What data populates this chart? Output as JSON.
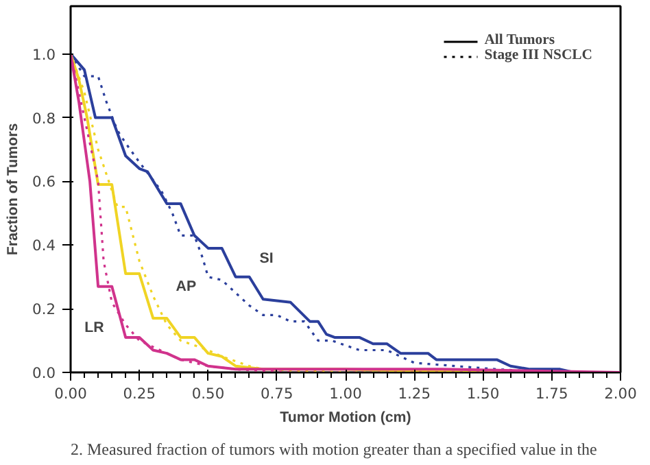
{
  "chart_data": {
    "type": "line",
    "xlabel": "Tumor Motion (cm)",
    "ylabel": "Fraction of Tumors",
    "xlim": [
      0,
      2
    ],
    "ylim": [
      0,
      1.15
    ],
    "xticks": [
      {
        "value": 0,
        "label": "0.00"
      },
      0.25,
      {
        "value": 0.5,
        "label": "0.50"
      },
      0.75,
      {
        "value": 1,
        "label": "1.00"
      },
      1.25,
      {
        "value": 1.5,
        "label": "1.50"
      },
      1.75,
      {
        "value": 2,
        "label": "2.00"
      }
    ],
    "yticks": [
      {
        "value": 0,
        "label": "0.0"
      },
      0.2,
      0.4,
      0.6,
      0.8,
      {
        "value": 1,
        "label": "1.0"
      }
    ],
    "grid": false,
    "marker": "none",
    "series": [
      {
        "color": "#2b3f9c",
        "line_style": "solid",
        "x": [
          0,
          0.05,
          0.09,
          0.15,
          0.2,
          0.25,
          0.28,
          0.35,
          0.4,
          0.45,
          0.5,
          0.55,
          0.6,
          0.65,
          0.7,
          0.8,
          0.87,
          0.9,
          0.93,
          0.96,
          1.05,
          1.1,
          1.15,
          1.2,
          1.3,
          1.33,
          1.55,
          1.6,
          1.67,
          1.78,
          1.83,
          2.0
        ],
        "values": [
          1.0,
          0.95,
          0.8,
          0.8,
          0.68,
          0.64,
          0.63,
          0.53,
          0.53,
          0.43,
          0.39,
          0.39,
          0.3,
          0.3,
          0.23,
          0.22,
          0.16,
          0.16,
          0.12,
          0.11,
          0.11,
          0.09,
          0.09,
          0.06,
          0.06,
          0.04,
          0.04,
          0.02,
          0.01,
          0.01,
          0.0,
          0.0
        ]
      },
      {
        "color": "#2b3f9c",
        "line_style": "dotted",
        "x": [
          0,
          0.05,
          0.1,
          0.13,
          0.17,
          0.2,
          0.25,
          0.33,
          0.37,
          0.4,
          0.45,
          0.48,
          0.5,
          0.55,
          0.6,
          0.65,
          0.7,
          0.75,
          0.8,
          0.85,
          0.9,
          0.95,
          1.05,
          1.15,
          1.25,
          1.4,
          1.55,
          1.75,
          2.0
        ],
        "values": [
          1.0,
          0.93,
          0.93,
          0.85,
          0.76,
          0.72,
          0.66,
          0.57,
          0.5,
          0.43,
          0.43,
          0.36,
          0.3,
          0.29,
          0.25,
          0.21,
          0.18,
          0.18,
          0.16,
          0.16,
          0.1,
          0.1,
          0.07,
          0.07,
          0.03,
          0.02,
          0.01,
          0.0,
          0.0
        ]
      },
      {
        "color": "#f0d424",
        "line_style": "solid",
        "x": [
          0,
          0.03,
          0.06,
          0.1,
          0.15,
          0.2,
          0.25,
          0.3,
          0.35,
          0.4,
          0.45,
          0.5,
          0.55,
          0.6,
          0.7,
          1.0,
          1.5,
          2.0
        ],
        "values": [
          1.0,
          0.92,
          0.8,
          0.59,
          0.59,
          0.31,
          0.31,
          0.17,
          0.17,
          0.11,
          0.11,
          0.06,
          0.05,
          0.02,
          0.01,
          0.01,
          0.0,
          0.0
        ]
      },
      {
        "color": "#f0d424",
        "line_style": "dotted",
        "x": [
          0,
          0.05,
          0.1,
          0.17,
          0.2,
          0.25,
          0.3,
          0.35,
          0.4,
          0.5,
          0.55,
          0.65,
          0.7,
          1.0,
          2.0
        ],
        "values": [
          1.0,
          0.88,
          0.7,
          0.52,
          0.52,
          0.35,
          0.24,
          0.15,
          0.1,
          0.07,
          0.05,
          0.02,
          0.01,
          0.0,
          0.0
        ]
      },
      {
        "color": "#d0338c",
        "line_style": "solid",
        "x": [
          0,
          0.03,
          0.07,
          0.1,
          0.15,
          0.2,
          0.25,
          0.3,
          0.35,
          0.4,
          0.45,
          0.5,
          0.6,
          1.35,
          2.0
        ],
        "values": [
          1.0,
          0.85,
          0.6,
          0.27,
          0.27,
          0.11,
          0.11,
          0.07,
          0.06,
          0.04,
          0.04,
          0.02,
          0.01,
          0.01,
          0.0
        ]
      },
      {
        "color": "#d0338c",
        "line_style": "dotted",
        "x": [
          0,
          0.05,
          0.1,
          0.12,
          0.15,
          0.2,
          0.25,
          0.3,
          0.35,
          0.4,
          0.5,
          0.6,
          0.8,
          2.0
        ],
        "values": [
          1.0,
          0.8,
          0.6,
          0.35,
          0.22,
          0.15,
          0.1,
          0.08,
          0.06,
          0.04,
          0.02,
          0.01,
          0.0,
          0.0
        ]
      }
    ],
    "annotations": [
      "All Tumors",
      "Stage III NSCLC",
      "SI",
      "AP",
      "LR",
      "2. Measured fraction of tumors with motion greater than a specified value in the"
    ]
  }
}
